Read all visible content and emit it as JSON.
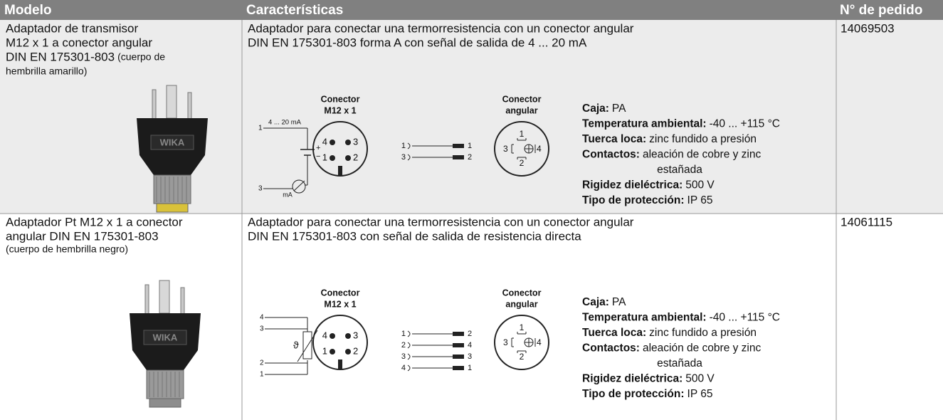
{
  "header": [
    "Modelo",
    "Características",
    "N° de pedido"
  ],
  "rows": [
    {
      "model": [
        "Adaptador de transmisor",
        "M12 x 1 a conector angular",
        "DIN EN 175301-803"
      ],
      "model_note": [
        "(cuerpo de",
        "hembrilla amarillo)"
      ],
      "image_label": "WIKA",
      "description": [
        "Adaptador para conectar una termorresistencia con un conector angular",
        "DIN EN 175301-803 forma A con señal de salida de 4 ... 20 mA"
      ],
      "diagram": {
        "m12_title": [
          "Conector",
          "M12 x 1"
        ],
        "angular_title": [
          "Conector",
          "angular"
        ],
        "m12_pins": [
          "4",
          "3",
          "1",
          "2"
        ],
        "angular_pins": [
          "1",
          "3",
          "4",
          "2"
        ],
        "mapping": [
          [
            "1",
            "1"
          ],
          [
            "3",
            "2"
          ]
        ],
        "source": [
          "1",
          "4 ... 20 mA",
          "+",
          "−",
          "3",
          "mA"
        ]
      },
      "specs": [
        {
          "label": "Caja:",
          "value": [
            "PA"
          ]
        },
        {
          "label": "Temperatura ambiental:",
          "value": [
            "-40 ... +115 °C"
          ]
        },
        {
          "label": "Tuerca loca:",
          "value": [
            "zinc fundido a presión"
          ]
        },
        {
          "label": "Contactos:",
          "value": [
            "aleación de cobre y zinc",
            "estañada"
          ]
        },
        {
          "label": "Rigidez dieléctrica:",
          "value": [
            "500 V"
          ]
        },
        {
          "label": "Tipo de protección:",
          "value": [
            "IP 65"
          ]
        }
      ],
      "order": "14069503"
    },
    {
      "model": [
        "Adaptador Pt M12 x 1 a conector",
        "angular DIN EN 175301-803"
      ],
      "model_note": [
        "(cuerpo de hembrilla negro)"
      ],
      "image_label": "WIKA",
      "description": [
        "Adaptador para conectar una termorresistencia con un conector angular",
        "DIN EN 175301-803 con señal de salida de resistencia directa"
      ],
      "diagram": {
        "m12_title": [
          "Conector",
          "M12 x 1"
        ],
        "angular_title": [
          "Conector",
          "angular"
        ],
        "m12_pins": [
          "4",
          "3",
          "1",
          "2"
        ],
        "angular_pins": [
          "1",
          "3",
          "4",
          "2"
        ],
        "mapping": [
          [
            "1",
            "2"
          ],
          [
            "2",
            "4"
          ],
          [
            "3",
            "3"
          ],
          [
            "4",
            "1"
          ]
        ],
        "source": [
          "4",
          "3",
          "2",
          "1",
          "ϑ"
        ]
      },
      "specs": [
        {
          "label": "Caja:",
          "value": [
            "PA"
          ]
        },
        {
          "label": "Temperatura ambiental:",
          "value": [
            "-40 ... +115 °C"
          ]
        },
        {
          "label": "Tuerca loca:",
          "value": [
            "zinc fundido a presión"
          ]
        },
        {
          "label": "Contactos:",
          "value": [
            "aleación de cobre y zinc",
            "estañada"
          ]
        },
        {
          "label": "Rigidez dieléctrica:",
          "value": [
            "500 V"
          ]
        },
        {
          "label": "Tipo de protección:",
          "value": [
            "IP 65"
          ]
        }
      ],
      "order": "14061115"
    }
  ]
}
